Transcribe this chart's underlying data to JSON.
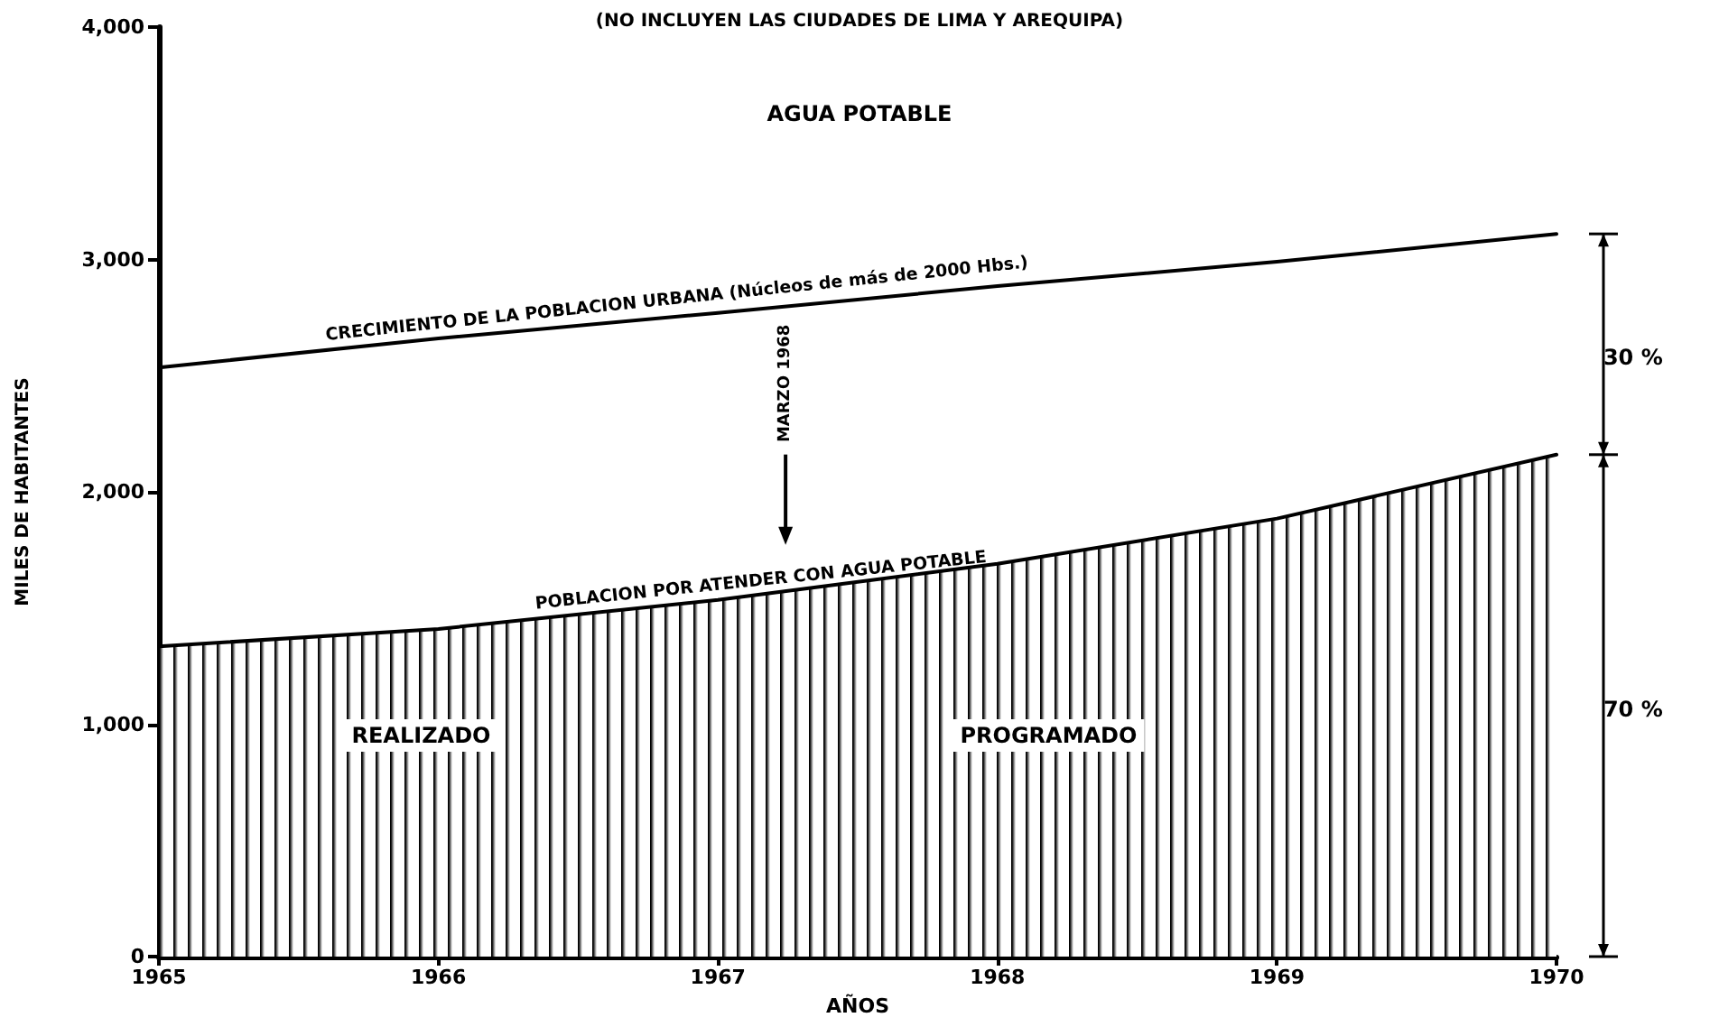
{
  "chart_data": {
    "type": "area",
    "title": "AGUA POTABLE",
    "subtitle": "(NO INCLUYEN LAS CIUDADES DE LIMA Y AREQUIPA)",
    "xlabel": "AÑOS",
    "ylabel": "MILES DE HABITANTES",
    "x": [
      1965,
      1966,
      1967,
      1968,
      1969,
      1970
    ],
    "series": [
      {
        "name": "CRECIMIENTO DE LA POBLACION URBANA (Núcleos de más de 2000 Hbs.)",
        "type": "line",
        "color": "#000000",
        "values": [
          2535,
          2660,
          2770,
          2885,
          2990,
          3110
        ]
      },
      {
        "name": "POBLACION POR ATENDER CON AGUA POTABLE",
        "type": "area",
        "color": "#000000",
        "values": [
          1335,
          1410,
          1535,
          1690,
          1885,
          2160
        ]
      }
    ],
    "xlim": [
      1965,
      1970
    ],
    "xticks": [
      1965,
      1966,
      1967,
      1968,
      1969,
      1970
    ],
    "ylim": [
      0,
      4000
    ],
    "yticks": [
      0,
      {
        "value": 1000,
        "label": "1,000"
      },
      {
        "value": 2000,
        "label": "2,000"
      },
      {
        "value": 3000,
        "label": "3,000"
      },
      {
        "value": 4000,
        "label": "4,000"
      }
    ],
    "annotations": [
      "MARZO 1968",
      "REALIZADO",
      "PROGRAMADO",
      "30 %",
      "70 %"
    ],
    "marker": "none",
    "grid": false
  }
}
